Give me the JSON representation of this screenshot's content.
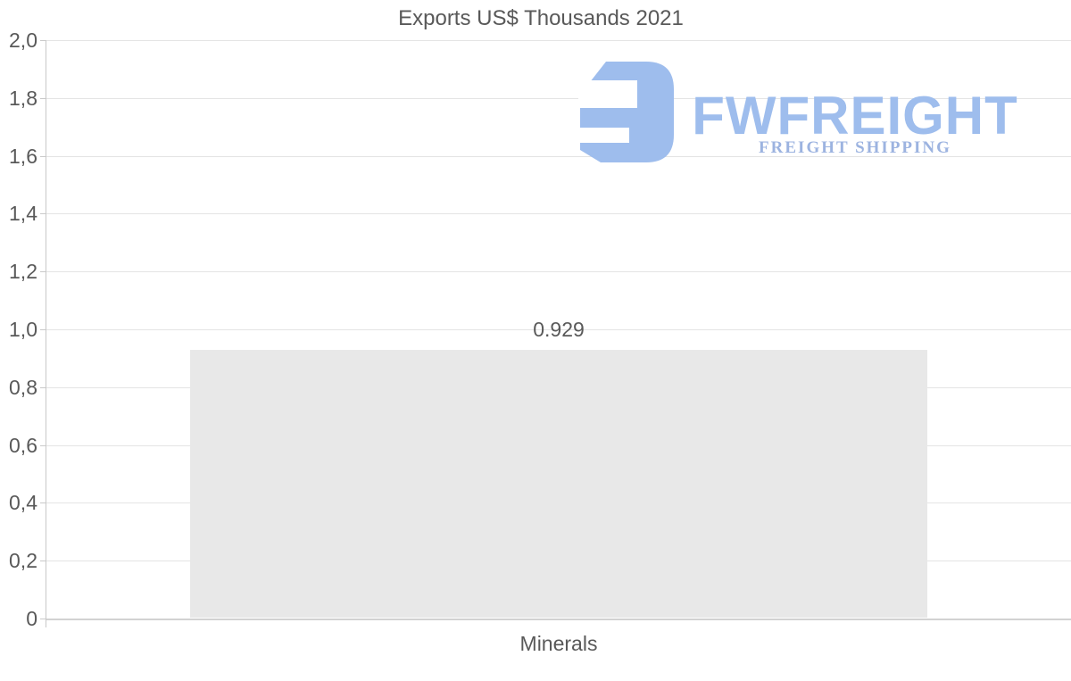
{
  "chart_data": {
    "type": "bar",
    "title": "Exports US$ Thousands 2021",
    "categories": [
      "Minerals"
    ],
    "values": [
      0.929
    ],
    "value_labels": [
      "0.929"
    ],
    "xlabel": "",
    "ylabel": "",
    "ylim": [
      0,
      2
    ],
    "ytick_step": 0.2,
    "ytick_labels": [
      "0",
      "0,2",
      "0,4",
      "0,6",
      "0,8",
      "1,0",
      "1,2",
      "1,4",
      "1,6",
      "1,8",
      "2,0"
    ],
    "grid": true,
    "legend": false,
    "colors": {
      "background": "#ffffff",
      "bar_fill": "#e8e8e8",
      "text": "#595959",
      "gridline": "#e4e4e4",
      "zero_line": "#d2d2d2",
      "axis_line": "#c9c9c9"
    }
  },
  "watermark": {
    "brand": "FWFREIGHT",
    "tagline": "FREIGHT SHIPPING",
    "brand_color": "#9ebded",
    "tagline_color": "#9cb3e0",
    "mark_icon": "rounded-square-f-mark"
  }
}
